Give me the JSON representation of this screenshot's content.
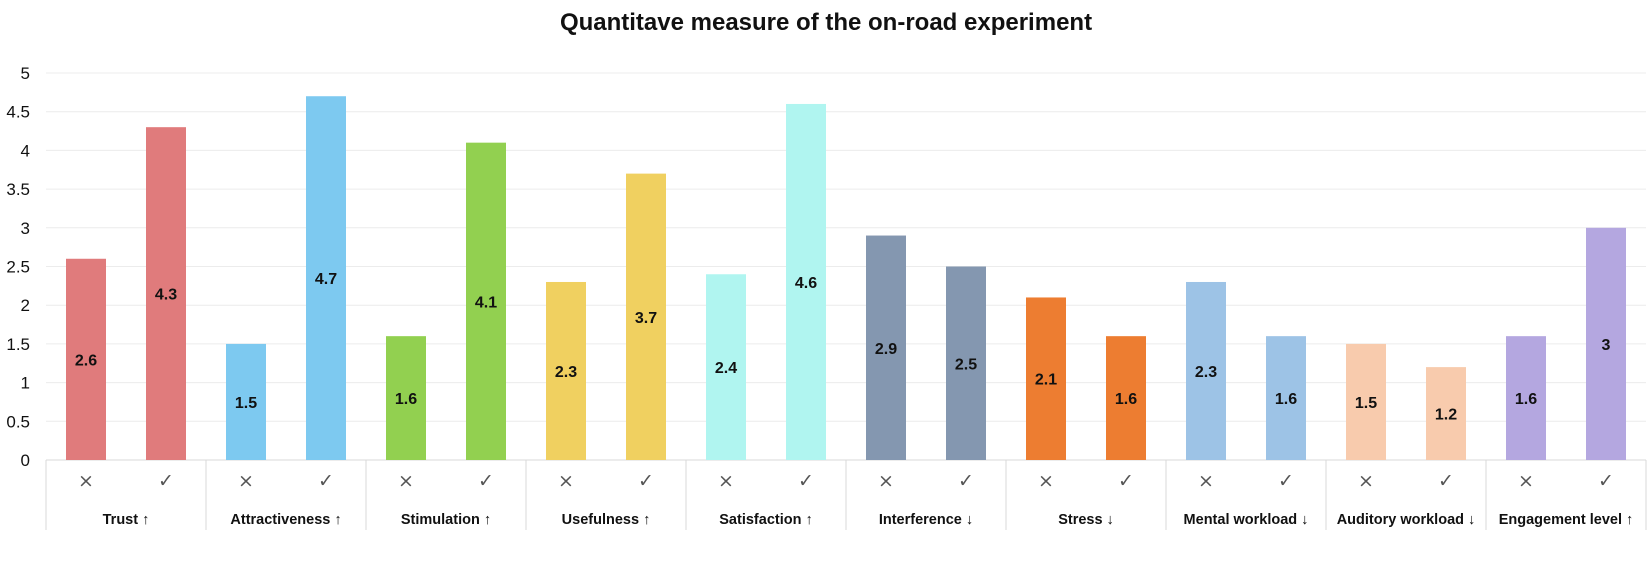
{
  "chart_data": {
    "type": "bar",
    "title": "Quantitave measure of the on-road experiment",
    "xlabel": "",
    "ylabel": "",
    "ylim": [
      0,
      5
    ],
    "yticks": [
      "0",
      "0.5",
      "1",
      "1.5",
      "2",
      "2.5",
      "3",
      "3.5",
      "4",
      "4.5",
      "5"
    ],
    "subcategories": [
      "×",
      "✓"
    ],
    "grid": true,
    "groups": [
      {
        "label": "Trust ↑",
        "values": [
          2.6,
          4.3
        ],
        "color": "#e07b7c"
      },
      {
        "label": "Attractiveness ↑",
        "values": [
          1.5,
          4.7
        ],
        "color": "#7dc9f0"
      },
      {
        "label": "Stimulation ↑",
        "values": [
          1.6,
          4.1
        ],
        "color": "#92d050"
      },
      {
        "label": "Usefulness ↑",
        "values": [
          2.3,
          3.7
        ],
        "color": "#f0d060"
      },
      {
        "label": "Satisfaction ↑",
        "values": [
          2.4,
          4.6
        ],
        "color": "#b0f5f0"
      },
      {
        "label": "Interference ↓",
        "values": [
          2.9,
          2.5
        ],
        "color": "#8497b0"
      },
      {
        "label": "Stress ↓",
        "values": [
          2.1,
          1.6
        ],
        "color": "#ed7d31"
      },
      {
        "label": "Mental workload ↓",
        "values": [
          2.3,
          1.6
        ],
        "color": "#9dc3e6"
      },
      {
        "label": "Auditory workload ↓",
        "values": [
          1.5,
          1.2
        ],
        "color": "#f8cbad"
      },
      {
        "label": "Engagement level ↑",
        "values": [
          1.6,
          3.0
        ],
        "color": "#b4a7e0"
      }
    ]
  }
}
